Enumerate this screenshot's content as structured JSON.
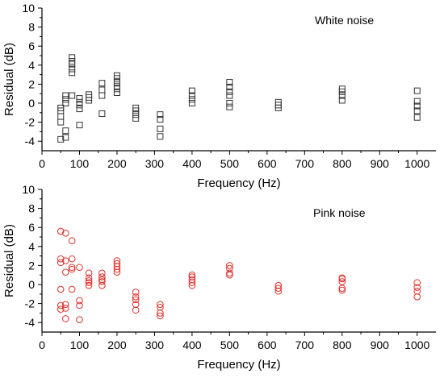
{
  "chart_data": [
    {
      "type": "scatter",
      "title": "",
      "annotation": "White noise",
      "xlabel": "Frequency (Hz)",
      "ylabel": "Residual (dB)",
      "xlim": [
        0,
        1050
      ],
      "ylim": [
        -5,
        10
      ],
      "xticks": [
        0,
        100,
        200,
        300,
        400,
        500,
        600,
        700,
        800,
        900,
        1000
      ],
      "yticks": [
        -4,
        -2,
        0,
        2,
        4,
        6,
        8,
        10
      ],
      "marker": "square",
      "color": "#333333",
      "points": [
        [
          50,
          -3.8
        ],
        [
          50,
          -2.0
        ],
        [
          50,
          -1.4
        ],
        [
          50,
          -0.8
        ],
        [
          50,
          -0.5
        ],
        [
          63,
          -3.6
        ],
        [
          63,
          -2.9
        ],
        [
          63,
          0.0
        ],
        [
          63,
          0.4
        ],
        [
          63,
          0.8
        ],
        [
          80,
          0.8
        ],
        [
          80,
          3.2
        ],
        [
          80,
          3.6
        ],
        [
          80,
          4.1
        ],
        [
          80,
          4.4
        ],
        [
          80,
          4.8
        ],
        [
          100,
          -2.3
        ],
        [
          100,
          -0.6
        ],
        [
          100,
          -0.2
        ],
        [
          100,
          0.1
        ],
        [
          100,
          0.5
        ],
        [
          125,
          0.3
        ],
        [
          125,
          0.6
        ],
        [
          125,
          0.9
        ],
        [
          160,
          -1.1
        ],
        [
          160,
          0.8
        ],
        [
          160,
          1.4
        ],
        [
          160,
          2.1
        ],
        [
          200,
          1.1
        ],
        [
          200,
          1.5
        ],
        [
          200,
          1.8
        ],
        [
          200,
          2.2
        ],
        [
          200,
          2.6
        ],
        [
          200,
          2.9
        ],
        [
          250,
          -1.6
        ],
        [
          250,
          -1.2
        ],
        [
          250,
          -0.8
        ],
        [
          250,
          -0.5
        ],
        [
          315,
          -3.5
        ],
        [
          315,
          -2.7
        ],
        [
          315,
          -1.7
        ],
        [
          315,
          -1.2
        ],
        [
          400,
          0.0
        ],
        [
          400,
          0.4
        ],
        [
          400,
          0.8
        ],
        [
          400,
          1.3
        ],
        [
          500,
          -0.4
        ],
        [
          500,
          0.0
        ],
        [
          500,
          0.8
        ],
        [
          500,
          1.2
        ],
        [
          500,
          1.7
        ],
        [
          500,
          2.2
        ],
        [
          630,
          -0.5
        ],
        [
          630,
          -0.2
        ],
        [
          630,
          0.1
        ],
        [
          800,
          0.3
        ],
        [
          800,
          0.8
        ],
        [
          800,
          1.2
        ],
        [
          800,
          1.5
        ],
        [
          1000,
          -1.5
        ],
        [
          1000,
          -0.8
        ],
        [
          1000,
          -0.3
        ],
        [
          1000,
          0.2
        ],
        [
          1000,
          1.3
        ]
      ]
    },
    {
      "type": "scatter",
      "title": "",
      "annotation": "Pink noise",
      "xlabel": "Frequency (Hz)",
      "ylabel": "Residual (dB)",
      "xlim": [
        0,
        1050
      ],
      "ylim": [
        -5,
        10
      ],
      "xticks": [
        0,
        100,
        200,
        300,
        400,
        500,
        600,
        700,
        800,
        900,
        1000
      ],
      "yticks": [
        -4,
        -2,
        0,
        2,
        4,
        6,
        8,
        10
      ],
      "marker": "circle",
      "color": "#e0302a",
      "points": [
        [
          50,
          -2.6
        ],
        [
          50,
          -2.2
        ],
        [
          50,
          -0.5
        ],
        [
          50,
          2.3
        ],
        [
          50,
          2.7
        ],
        [
          50,
          5.6
        ],
        [
          63,
          -3.6
        ],
        [
          63,
          -2.5
        ],
        [
          63,
          -2.1
        ],
        [
          63,
          1.3
        ],
        [
          63,
          2.5
        ],
        [
          63,
          5.4
        ],
        [
          80,
          -0.5
        ],
        [
          80,
          1.6
        ],
        [
          80,
          1.8
        ],
        [
          80,
          2.7
        ],
        [
          80,
          4.6
        ],
        [
          100,
          -3.7
        ],
        [
          100,
          -2.2
        ],
        [
          100,
          -1.7
        ],
        [
          100,
          1.8
        ],
        [
          125,
          -0.1
        ],
        [
          125,
          0.2
        ],
        [
          125,
          0.4
        ],
        [
          125,
          0.7
        ],
        [
          125,
          1.2
        ],
        [
          160,
          -0.1
        ],
        [
          160,
          0.3
        ],
        [
          160,
          0.5
        ],
        [
          160,
          0.8
        ],
        [
          160,
          1.2
        ],
        [
          200,
          1.3
        ],
        [
          200,
          1.6
        ],
        [
          200,
          1.9
        ],
        [
          200,
          2.2
        ],
        [
          200,
          2.5
        ],
        [
          250,
          -2.7
        ],
        [
          250,
          -2.1
        ],
        [
          250,
          -1.6
        ],
        [
          250,
          -1.3
        ],
        [
          250,
          -0.8
        ],
        [
          315,
          -3.3
        ],
        [
          315,
          -3.0
        ],
        [
          315,
          -2.4
        ],
        [
          315,
          -2.1
        ],
        [
          400,
          -0.1
        ],
        [
          400,
          0.2
        ],
        [
          400,
          0.5
        ],
        [
          400,
          0.8
        ],
        [
          400,
          1.0
        ],
        [
          500,
          1.0
        ],
        [
          500,
          1.2
        ],
        [
          500,
          1.7
        ],
        [
          500,
          2.0
        ],
        [
          630,
          -0.7
        ],
        [
          630,
          -0.4
        ],
        [
          630,
          -0.1
        ],
        [
          800,
          -0.6
        ],
        [
          800,
          -0.4
        ],
        [
          800,
          0.3
        ],
        [
          800,
          0.6
        ],
        [
          800,
          0.7
        ],
        [
          1000,
          -1.3
        ],
        [
          1000,
          -0.7
        ],
        [
          1000,
          -0.3
        ],
        [
          1000,
          0.2
        ]
      ]
    }
  ]
}
